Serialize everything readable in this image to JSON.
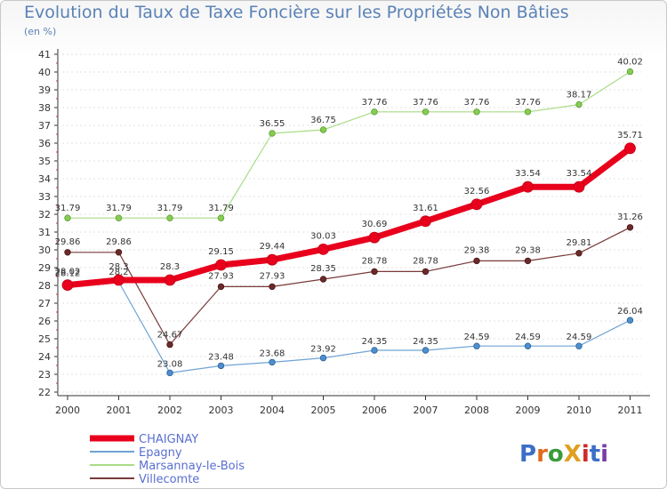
{
  "title": "Evolution du Taux de Taxe Foncière sur les Propriétés Non Bâties",
  "subtitle": "(en %)",
  "logo": "ProXiti",
  "colors": {
    "CHAIGNAY": "#e8001c",
    "Epagny": "#6fa3d4",
    "Marsannay-le-Bois": "#9fd77a",
    "Villecomte": "#6b2a2a",
    "axis": "#333333",
    "tick_red": "#d33"
  },
  "chart_data": {
    "type": "line",
    "title": "Evolution du Taux de Taxe Foncière sur les Propriétés Non Bâties",
    "subtitle": "(en %)",
    "x": [
      "2000",
      "2001",
      "2002",
      "2003",
      "2004",
      "2005",
      "2006",
      "2007",
      "2008",
      "2009",
      "2010",
      "2011"
    ],
    "yticks": [
      22,
      23,
      24,
      25,
      26,
      27,
      28,
      29,
      30,
      31,
      32,
      33,
      34,
      35,
      36,
      37,
      38,
      39,
      40,
      41
    ],
    "ylim": [
      22,
      41
    ],
    "legend_position": "bottom-left",
    "series": [
      {
        "name": "CHAIGNAY",
        "values": [
          28.02,
          28.3,
          28.3,
          29.15,
          29.44,
          30.03,
          30.69,
          31.61,
          32.56,
          33.54,
          33.54,
          35.71
        ],
        "labels": [
          "28.02",
          "28.3",
          "28.3",
          "29.15",
          "29.44",
          "30.03",
          "30.69",
          "31.61",
          "32.56",
          "33.54",
          "33.54",
          "35.71"
        ]
      },
      {
        "name": "Epagny",
        "values": [
          28.12,
          28.2,
          23.08,
          23.48,
          23.68,
          23.92,
          24.35,
          24.35,
          24.59,
          24.59,
          24.59,
          26.04
        ],
        "labels": [
          "28.12",
          "28.2",
          "23.08",
          "23.48",
          "23.68",
          "23.92",
          "24.35",
          "24.35",
          "24.59",
          "24.59",
          "24.59",
          "26.04"
        ]
      },
      {
        "name": "Marsannay-le-Bois",
        "values": [
          31.79,
          31.79,
          31.79,
          31.79,
          36.55,
          36.75,
          37.76,
          37.76,
          37.76,
          37.76,
          38.17,
          40.02
        ],
        "labels": [
          "31.79",
          "31.79",
          "31.79",
          "31.79",
          "36.55",
          "36.75",
          "37.76",
          "37.76",
          "37.76",
          "37.76",
          "38.17",
          "40.02"
        ]
      },
      {
        "name": "Villecomte",
        "values": [
          29.86,
          29.86,
          24.67,
          27.93,
          27.93,
          28.35,
          28.78,
          28.78,
          29.38,
          29.38,
          29.81,
          31.26
        ],
        "labels": [
          "29.86",
          "29.86",
          "24.67",
          "27.93",
          "27.93",
          "28.35",
          "28.78",
          "28.78",
          "29.38",
          "29.38",
          "29.81",
          "31.26"
        ]
      }
    ]
  }
}
